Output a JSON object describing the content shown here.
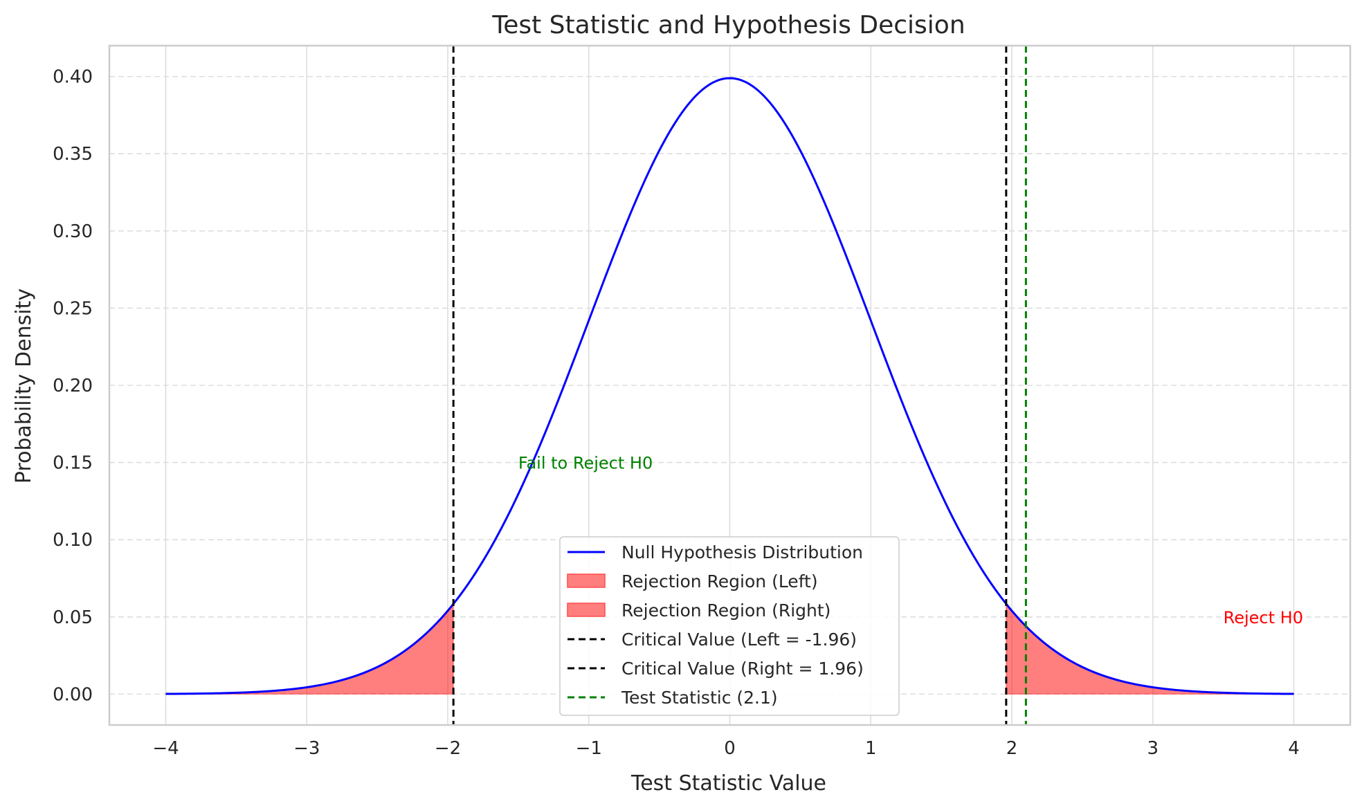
{
  "chart_data": {
    "type": "line",
    "title": "Test Statistic and Hypothesis Decision",
    "xlabel": "Test Statistic Value",
    "ylabel": "Probability Density",
    "xlim": [
      -4.4,
      4.4
    ],
    "ylim": [
      -0.02,
      0.42
    ],
    "x_ticks": [
      -4,
      -3,
      -2,
      -1,
      0,
      1,
      2,
      3,
      4
    ],
    "x_tick_labels": [
      "−4",
      "−3",
      "−2",
      "−1",
      "0",
      "1",
      "2",
      "3",
      "4"
    ],
    "y_ticks": [
      0.0,
      0.05,
      0.1,
      0.15,
      0.2,
      0.25,
      0.3,
      0.35,
      0.4
    ],
    "y_tick_labels": [
      "0.00",
      "0.05",
      "0.10",
      "0.15",
      "0.20",
      "0.25",
      "0.30",
      "0.35",
      "0.40"
    ],
    "grid": true,
    "legend_placement": "lower-center",
    "series": [
      {
        "name": "Null Hypothesis Distribution",
        "kind": "line",
        "color": "#0000ff",
        "distribution": "standard normal",
        "x_range": [
          -4,
          4
        ],
        "x": [
          -4.0,
          -3.5,
          -3.0,
          -2.5,
          -2.0,
          -1.96,
          -1.5,
          -1.0,
          -0.5,
          0.0,
          0.5,
          1.0,
          1.5,
          1.96,
          2.0,
          2.1,
          2.5,
          3.0,
          3.5,
          4.0
        ],
        "y": [
          0.0001,
          0.0009,
          0.0044,
          0.0175,
          0.054,
          0.0584,
          0.1295,
          0.242,
          0.3521,
          0.3989,
          0.3521,
          0.242,
          0.1295,
          0.0584,
          0.054,
          0.044,
          0.0175,
          0.0044,
          0.0009,
          0.0001
        ]
      },
      {
        "name": "Rejection Region (Left)",
        "kind": "area",
        "color": "#ff0000",
        "x_range": [
          -4,
          -1.96
        ]
      },
      {
        "name": "Rejection Region (Right)",
        "kind": "area",
        "color": "#ff0000",
        "x_range": [
          1.96,
          4
        ]
      },
      {
        "name": "Critical Value (Left = -1.96)",
        "kind": "vline",
        "color": "#000000",
        "x": -1.96
      },
      {
        "name": "Critical Value (Right = 1.96)",
        "kind": "vline",
        "color": "#000000",
        "x": 1.96
      },
      {
        "name": "Test Statistic (2.1)",
        "kind": "vline",
        "color": "#008000",
        "x": 2.1
      }
    ],
    "annotations": [
      {
        "text": "Fail to Reject H0",
        "x": -1.5,
        "y": 0.15,
        "color": "#008000"
      },
      {
        "text": "Reject H0",
        "x": 3.5,
        "y": 0.05,
        "color": "#ff0000"
      }
    ]
  }
}
